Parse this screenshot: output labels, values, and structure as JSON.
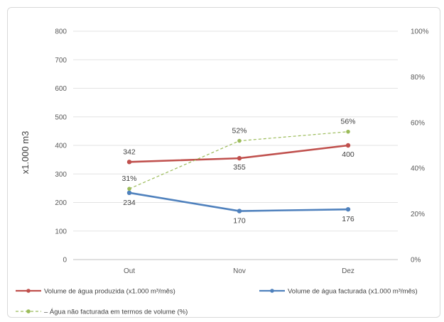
{
  "chart_data": {
    "type": "line",
    "categories": [
      "Out",
      "Nov",
      "Dez"
    ],
    "ylabel": "x1.000 m3",
    "ylim": [
      0,
      800
    ],
    "y_ticks": [
      "0",
      "100",
      "200",
      "300",
      "400",
      "500",
      "600",
      "700",
      "800"
    ],
    "y2lim": [
      0,
      100
    ],
    "y2_ticks": [
      "0%",
      "20%",
      "40%",
      "60%",
      "80%",
      "100%"
    ],
    "grid": true,
    "legend_position": "bottom",
    "series": [
      {
        "name": "Volume de água produzida (x1.000 m³/mês)",
        "values": [
          342,
          355,
          400
        ],
        "labels": [
          "342",
          "355",
          "400"
        ],
        "axis": "left",
        "color": "#c0504d",
        "style": "solid"
      },
      {
        "name": "Volume de água facturada (x1.000 m³/mês)",
        "values": [
          234,
          170,
          176
        ],
        "labels": [
          "234",
          "170",
          "176"
        ],
        "axis": "left",
        "color": "#4f81bd",
        "style": "solid"
      },
      {
        "name": "– Água não facturada em termos de volume (%)",
        "values": [
          31,
          52,
          56
        ],
        "labels": [
          "31%",
          "52%",
          "56%"
        ],
        "axis": "right",
        "color": "#9bbb59",
        "style": "dashed"
      }
    ]
  }
}
